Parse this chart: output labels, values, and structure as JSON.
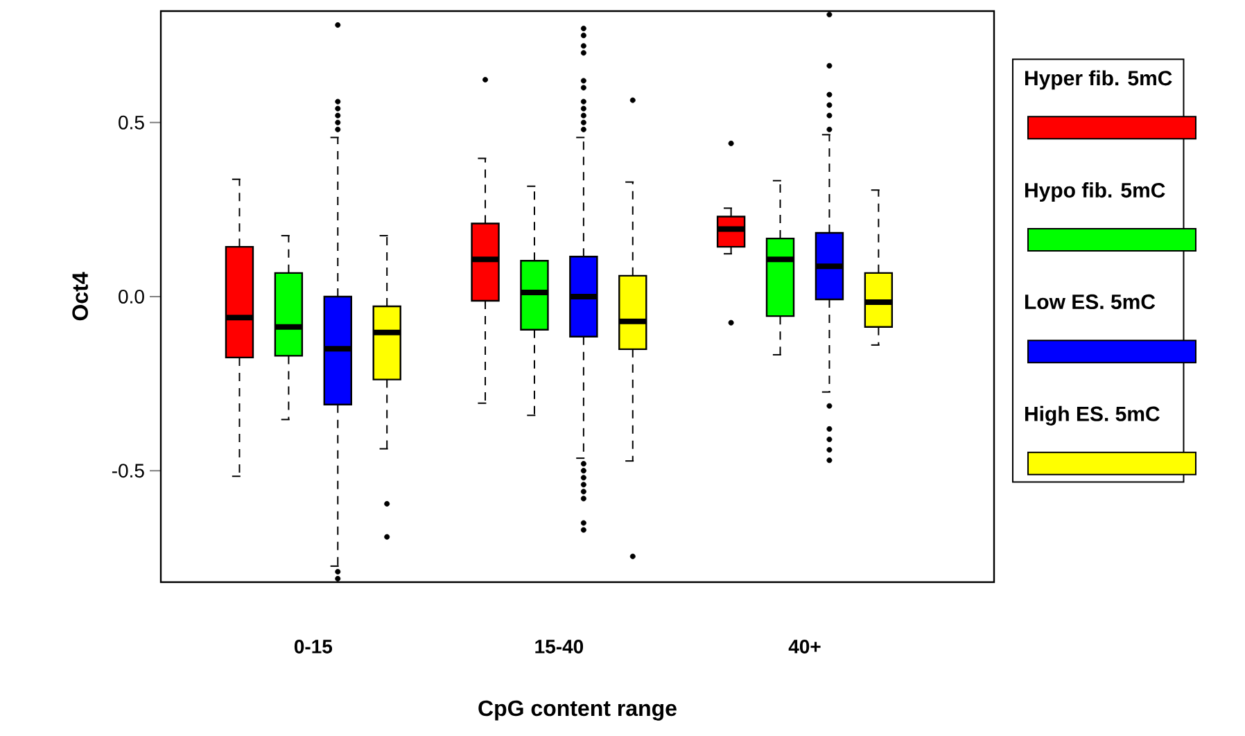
{
  "chart_data": {
    "type": "box",
    "xlabel": "CpG content range",
    "ylabel": "Oct4",
    "categories": [
      "0-15",
      "15-40",
      "40+"
    ],
    "ylim": [
      -0.82,
      0.82
    ],
    "yticks": [
      -0.5,
      {
        "value": 0,
        "label": "0.0"
      },
      0.5
    ],
    "legend": "right",
    "marker": "circle",
    "grid": false,
    "series": [
      {
        "name": "Hyper fib. 5mC",
        "color": "#ff0000",
        "boxes": [
          {
            "low": -0.516,
            "q1": -0.175,
            "median": -0.06,
            "q3": 0.143,
            "high": 0.337
          },
          {
            "low": -0.306,
            "q1": -0.012,
            "median": 0.107,
            "q3": 0.21,
            "high": 0.397,
            "outliers": [
              0.623
            ]
          },
          {
            "low": 0.123,
            "q1": 0.143,
            "median": 0.194,
            "q3": 0.23,
            "high": 0.254,
            "outliers": [
              0.44,
              -0.075
            ]
          }
        ]
      },
      {
        "name": "Hypo fib. 5mC",
        "color": "#00ff00",
        "boxes": [
          {
            "low": -0.353,
            "q1": -0.17,
            "median": -0.087,
            "q3": 0.068,
            "high": 0.175
          },
          {
            "low": -0.341,
            "q1": -0.095,
            "median": 0.012,
            "q3": 0.103,
            "high": 0.317
          },
          {
            "low": -0.167,
            "q1": -0.056,
            "median": 0.107,
            "q3": 0.167,
            "high": 0.333
          }
        ]
      },
      {
        "name": "Low ES. 5mC",
        "color": "#0000ff",
        "boxes": [
          {
            "low": -0.774,
            "q1": -0.31,
            "median": -0.15,
            "q3": 0.0,
            "high": 0.457,
            "outliers": [
              0.78,
              0.56,
              0.54,
              0.52,
              0.5,
              0.48,
              -0.79,
              -0.81
            ]
          },
          {
            "low": -0.464,
            "q1": -0.115,
            "median": 0.0,
            "q3": 0.115,
            "high": 0.457,
            "outliers": [
              0.77,
              0.75,
              0.72,
              0.7,
              0.62,
              0.6,
              0.56,
              0.54,
              0.52,
              0.5,
              0.48,
              -0.48,
              -0.5,
              -0.52,
              -0.54,
              -0.56,
              -0.58,
              -0.65,
              -0.67
            ]
          },
          {
            "low": -0.274,
            "q1": -0.008,
            "median": 0.087,
            "q3": 0.183,
            "high": 0.465,
            "outliers": [
              0.81,
              0.663,
              0.58,
              0.55,
              0.52,
              0.48,
              -0.314,
              -0.38,
              -0.41,
              -0.44,
              -0.47
            ]
          }
        ]
      },
      {
        "name": "High ES. 5mC",
        "color": "#ffff00",
        "boxes": [
          {
            "low": -0.437,
            "q1": -0.238,
            "median": -0.103,
            "q3": -0.028,
            "high": 0.175,
            "outliers": [
              -0.595,
              -0.69
            ]
          },
          {
            "low": -0.472,
            "q1": -0.151,
            "median": -0.071,
            "q3": 0.06,
            "high": 0.329,
            "outliers": [
              0.564,
              -0.746
            ]
          },
          {
            "low": -0.139,
            "q1": -0.087,
            "median": -0.016,
            "q3": 0.068,
            "high": 0.306
          }
        ]
      }
    ]
  }
}
